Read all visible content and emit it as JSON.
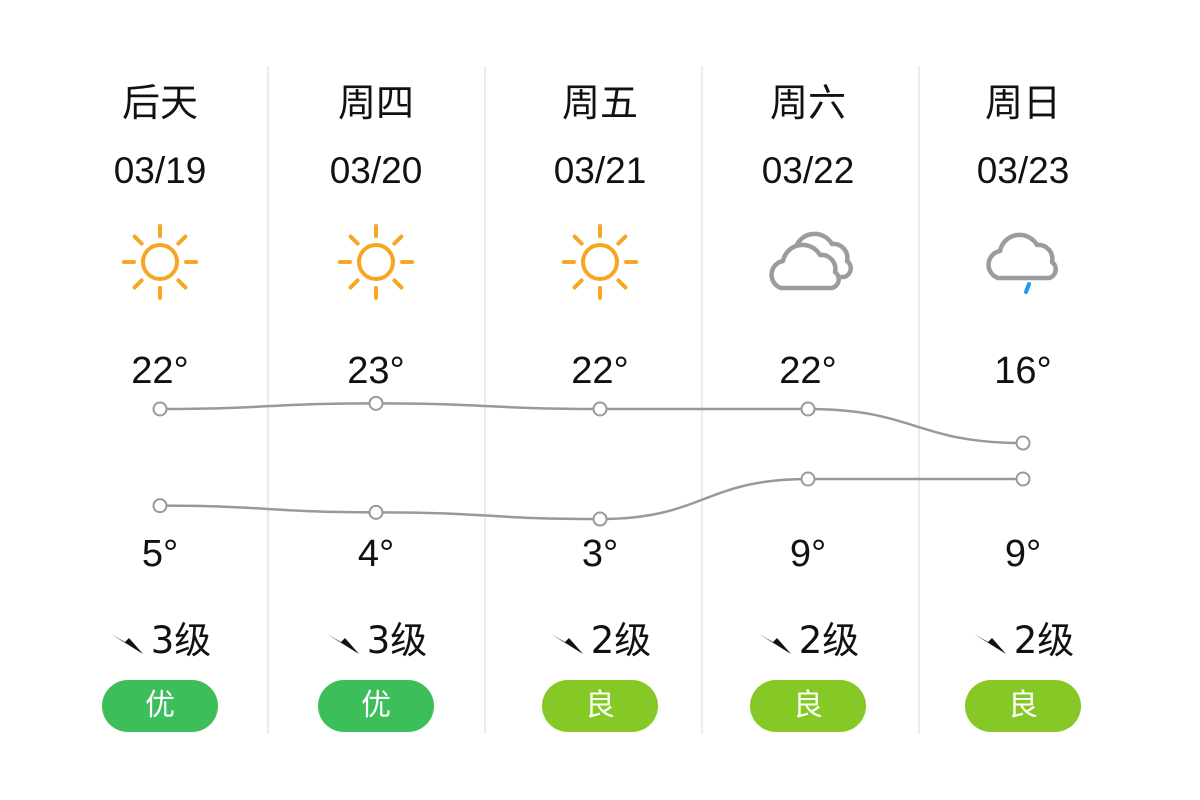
{
  "days": [
    {
      "label": "后天",
      "date": "03/19",
      "icon": "sun-icon",
      "high": "22°",
      "low": "5°",
      "high_value": 22,
      "low_value": 5,
      "wind": "3级",
      "aqi": "优",
      "aqi_color": "#3cbf5a"
    },
    {
      "label": "周四",
      "date": "03/20",
      "icon": "sun-icon",
      "high": "23°",
      "low": "4°",
      "high_value": 23,
      "low_value": 4,
      "wind": "3级",
      "aqi": "优",
      "aqi_color": "#3cbf5a"
    },
    {
      "label": "周五",
      "date": "03/21",
      "icon": "sun-icon",
      "high": "22°",
      "low": "3°",
      "high_value": 22,
      "low_value": 3,
      "wind": "2级",
      "aqi": "良",
      "aqi_color": "#86c826"
    },
    {
      "label": "周六",
      "date": "03/22",
      "icon": "cloudy-icon",
      "high": "22°",
      "low": "9°",
      "high_value": 22,
      "low_value": 9,
      "wind": "2级",
      "aqi": "良",
      "aqi_color": "#86c826"
    },
    {
      "label": "周日",
      "date": "03/23",
      "icon": "rain-icon",
      "high": "16°",
      "low": "9°",
      "high_value": 16,
      "low_value": 9,
      "wind": "2级",
      "aqi": "良",
      "aqi_color": "#86c826"
    }
  ],
  "colors": {
    "sun": "#f5a623",
    "cloud": "#9b9ba0",
    "rain": "#1e9be9",
    "line": "#999999"
  }
}
